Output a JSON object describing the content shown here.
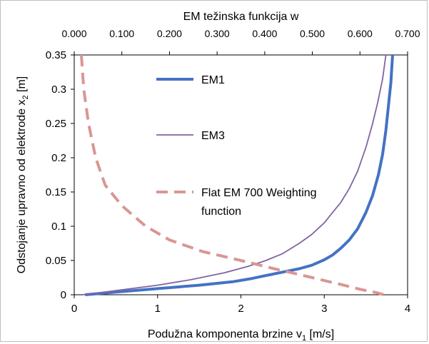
{
  "chart_data": {
    "type": "line",
    "x_axis": {
      "label_main": "Podužna komponenta brzine v",
      "label_sub": "1",
      "label_unit": "  [m/s]",
      "range": [
        0,
        4
      ],
      "ticks": [
        "0",
        "1",
        "2",
        "3",
        "4"
      ]
    },
    "x2_axis": {
      "label": "EM težinska funkcija w",
      "range": [
        0,
        0.7
      ],
      "ticks": [
        "0.000",
        "0.100",
        "0.200",
        "0.300",
        "0.400",
        "0.500",
        "0.600",
        "0.700"
      ]
    },
    "y_axis": {
      "label_main": "Odstojanje upravno od elektrode x",
      "label_sub": "2",
      "label_unit": " [m]",
      "range": [
        0,
        0.35
      ],
      "ticks": [
        "0",
        "0.05",
        "0.1",
        "0.15",
        "0.2",
        "0.25",
        "0.3",
        "0.35"
      ]
    },
    "grid": false,
    "series": [
      {
        "name": "EM1",
        "color": "#4472c4",
        "style": "solid-thick",
        "x_axis": "bottom",
        "points": [
          [
            0.13,
            0
          ],
          [
            0.5,
            0.004
          ],
          [
            1.0,
            0.009
          ],
          [
            1.5,
            0.014
          ],
          [
            1.9,
            0.019
          ],
          [
            2.1,
            0.023
          ],
          [
            2.3,
            0.028
          ],
          [
            2.5,
            0.033
          ],
          [
            2.7,
            0.038
          ],
          [
            2.85,
            0.043
          ],
          [
            3.0,
            0.051
          ],
          [
            3.1,
            0.058
          ],
          [
            3.2,
            0.068
          ],
          [
            3.3,
            0.08
          ],
          [
            3.4,
            0.096
          ],
          [
            3.5,
            0.12
          ],
          [
            3.58,
            0.145
          ],
          [
            3.65,
            0.175
          ],
          [
            3.7,
            0.205
          ],
          [
            3.74,
            0.24
          ],
          [
            3.77,
            0.275
          ],
          [
            3.8,
            0.31
          ],
          [
            3.82,
            0.35
          ]
        ]
      },
      {
        "name": "EM3",
        "color": "#8064a2",
        "style": "solid-thin",
        "x_axis": "bottom",
        "points": [
          [
            0.1,
            0
          ],
          [
            0.5,
            0.006
          ],
          [
            1.0,
            0.014
          ],
          [
            1.4,
            0.022
          ],
          [
            1.8,
            0.032
          ],
          [
            2.1,
            0.042
          ],
          [
            2.3,
            0.05
          ],
          [
            2.5,
            0.06
          ],
          [
            2.7,
            0.075
          ],
          [
            2.85,
            0.088
          ],
          [
            3.0,
            0.105
          ],
          [
            3.1,
            0.12
          ],
          [
            3.2,
            0.135
          ],
          [
            3.3,
            0.155
          ],
          [
            3.4,
            0.18
          ],
          [
            3.5,
            0.215
          ],
          [
            3.58,
            0.25
          ],
          [
            3.64,
            0.28
          ],
          [
            3.7,
            0.315
          ],
          [
            3.74,
            0.35
          ]
        ]
      },
      {
        "name": "Flat EM 700  Weighting function",
        "color": "#d99694",
        "style": "dashed",
        "x_axis": "top",
        "points": [
          [
            0.015,
            0.35
          ],
          [
            0.02,
            0.3
          ],
          [
            0.03,
            0.25
          ],
          [
            0.045,
            0.2
          ],
          [
            0.065,
            0.16
          ],
          [
            0.1,
            0.13
          ],
          [
            0.15,
            0.1
          ],
          [
            0.2,
            0.08
          ],
          [
            0.27,
            0.063
          ],
          [
            0.35,
            0.05
          ],
          [
            0.42,
            0.038
          ],
          [
            0.5,
            0.025
          ],
          [
            0.56,
            0.015
          ],
          [
            0.6,
            0.008
          ],
          [
            0.635,
            0.003
          ],
          [
            0.65,
            0
          ]
        ]
      }
    ],
    "legend": {
      "position": "inside-left",
      "entries": [
        {
          "label_lines": [
            "EM1"
          ]
        },
        {
          "label_lines": [
            "EM3"
          ]
        },
        {
          "label_lines": [
            "Flat EM 700  Weighting",
            "function"
          ]
        }
      ]
    }
  }
}
